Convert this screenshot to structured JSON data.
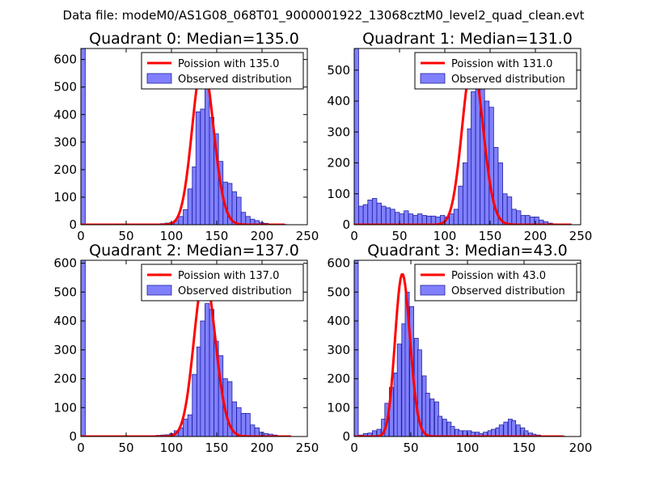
{
  "figure": {
    "suptitle": "Data file: modeM0/AS1G08_068T01_9000001922_13068cztM0_level2_quad_clean.evt"
  },
  "colors": {
    "poisson_line": "#ff0000",
    "hist_fill": "#8080ff",
    "hist_edge": "#2020a0",
    "legend_border": "#000000"
  },
  "chart_data": [
    {
      "type": "bar",
      "title": "Quadrant 0: Median=135.0",
      "xlim": [
        0,
        250
      ],
      "ylim": [
        0,
        640
      ],
      "xticks": [
        0,
        50,
        100,
        150,
        200,
        250
      ],
      "yticks": [
        0,
        100,
        200,
        300,
        400,
        500,
        600
      ],
      "legend": [
        "Poission with 135.0",
        "Observed distribution"
      ],
      "legend_loc": "top-right",
      "bin_width": 4.9,
      "bins": [
        [
          0,
          640
        ],
        [
          78,
          2
        ],
        [
          88,
          4
        ],
        [
          93,
          6
        ],
        [
          98,
          8
        ],
        [
          103,
          15
        ],
        [
          108,
          30
        ],
        [
          113,
          55
        ],
        [
          118,
          130
        ],
        [
          123,
          210
        ],
        [
          127,
          410
        ],
        [
          132,
          420
        ],
        [
          137,
          550
        ],
        [
          142,
          390
        ],
        [
          147,
          330
        ],
        [
          152,
          230
        ],
        [
          157,
          155
        ],
        [
          162,
          150
        ],
        [
          167,
          120
        ],
        [
          172,
          100
        ],
        [
          177,
          45
        ],
        [
          182,
          30
        ],
        [
          187,
          20
        ],
        [
          192,
          15
        ],
        [
          197,
          8
        ],
        [
          202,
          5
        ],
        [
          207,
          3
        ],
        [
          212,
          2
        ],
        [
          217,
          1
        ],
        [
          222,
          1
        ]
      ],
      "poisson": {
        "mu": 135.0,
        "scale": 3.4,
        "x_range": [
          0,
          225
        ]
      }
    },
    {
      "type": "bar",
      "title": "Quadrant 1: Median=131.0",
      "xlim": [
        0,
        250
      ],
      "ylim": [
        0,
        570
      ],
      "xticks": [
        0,
        50,
        100,
        150,
        200,
        250
      ],
      "yticks": [
        0,
        100,
        200,
        300,
        400,
        500
      ],
      "legend": [
        "Poission with 131.0",
        "Observed distribution"
      ],
      "legend_loc": "top-right",
      "bin_width": 4.9,
      "bins": [
        [
          0,
          570
        ],
        [
          5,
          60
        ],
        [
          10,
          65
        ],
        [
          15,
          80
        ],
        [
          20,
          85
        ],
        [
          25,
          70
        ],
        [
          30,
          60
        ],
        [
          35,
          55
        ],
        [
          40,
          50
        ],
        [
          45,
          40
        ],
        [
          50,
          35
        ],
        [
          55,
          45
        ],
        [
          60,
          35
        ],
        [
          65,
          30
        ],
        [
          70,
          35
        ],
        [
          75,
          30
        ],
        [
          80,
          28
        ],
        [
          85,
          28
        ],
        [
          90,
          25
        ],
        [
          95,
          30
        ],
        [
          100,
          25
        ],
        [
          105,
          35
        ],
        [
          110,
          50
        ],
        [
          115,
          125
        ],
        [
          120,
          200
        ],
        [
          125,
          310
        ],
        [
          129,
          430
        ],
        [
          134,
          480
        ],
        [
          139,
          530
        ],
        [
          144,
          400
        ],
        [
          149,
          380
        ],
        [
          154,
          250
        ],
        [
          159,
          200
        ],
        [
          164,
          100
        ],
        [
          169,
          90
        ],
        [
          174,
          50
        ],
        [
          179,
          45
        ],
        [
          184,
          30
        ],
        [
          189,
          30
        ],
        [
          194,
          25
        ],
        [
          199,
          25
        ],
        [
          204,
          15
        ],
        [
          209,
          10
        ],
        [
          214,
          5
        ],
        [
          219,
          3
        ],
        [
          224,
          2
        ],
        [
          229,
          1
        ]
      ],
      "poisson": {
        "mu": 131.0,
        "scale": 3.48,
        "x_range": [
          0,
          240
        ]
      }
    },
    {
      "type": "bar",
      "title": "Quadrant 2: Median=137.0",
      "xlim": [
        0,
        250
      ],
      "ylim": [
        0,
        610
      ],
      "xticks": [
        0,
        50,
        100,
        150,
        200,
        250
      ],
      "yticks": [
        0,
        100,
        200,
        300,
        400,
        500,
        600
      ],
      "legend": [
        "Poission with 137.0",
        "Observed distribution"
      ],
      "legend_loc": "top-right",
      "bin_width": 4.9,
      "bins": [
        [
          0,
          610
        ],
        [
          73,
          2
        ],
        [
          78,
          3
        ],
        [
          83,
          4
        ],
        [
          88,
          5
        ],
        [
          93,
          6
        ],
        [
          98,
          10
        ],
        [
          103,
          20
        ],
        [
          108,
          30
        ],
        [
          113,
          60
        ],
        [
          118,
          75
        ],
        [
          123,
          215
        ],
        [
          128,
          310
        ],
        [
          132,
          400
        ],
        [
          137,
          460
        ],
        [
          142,
          440
        ],
        [
          147,
          330
        ],
        [
          152,
          280
        ],
        [
          157,
          200
        ],
        [
          162,
          190
        ],
        [
          167,
          120
        ],
        [
          172,
          100
        ],
        [
          177,
          80
        ],
        [
          182,
          80
        ],
        [
          187,
          40
        ],
        [
          192,
          30
        ],
        [
          197,
          15
        ],
        [
          202,
          10
        ],
        [
          207,
          8
        ],
        [
          212,
          5
        ],
        [
          217,
          3
        ],
        [
          222,
          3
        ],
        [
          227,
          2
        ]
      ],
      "poisson": {
        "mu": 137.0,
        "scale": 3.37,
        "x_range": [
          0,
          232
        ]
      }
    },
    {
      "type": "bar",
      "title": "Quadrant 3: Median=43.0",
      "xlim": [
        0,
        200
      ],
      "ylim": [
        0,
        610
      ],
      "xticks": [
        0,
        50,
        100,
        150,
        200
      ],
      "yticks": [
        0,
        100,
        200,
        300,
        400,
        500,
        600
      ],
      "legend": [
        "Poission with 43.0",
        "Observed distribution"
      ],
      "legend_loc": "top-right",
      "bin_width": 3.6,
      "bins": [
        [
          0,
          610
        ],
        [
          4,
          5
        ],
        [
          8,
          10
        ],
        [
          12,
          12
        ],
        [
          16,
          20
        ],
        [
          20,
          25
        ],
        [
          24,
          60
        ],
        [
          27,
          115
        ],
        [
          31,
          170
        ],
        [
          35,
          220
        ],
        [
          38,
          320
        ],
        [
          42,
          390
        ],
        [
          45,
          500
        ],
        [
          49,
          450
        ],
        [
          53,
          340
        ],
        [
          56,
          300
        ],
        [
          60,
          210
        ],
        [
          63,
          150
        ],
        [
          67,
          130
        ],
        [
          71,
          120
        ],
        [
          74,
          70
        ],
        [
          78,
          60
        ],
        [
          82,
          50
        ],
        [
          85,
          35
        ],
        [
          89,
          25
        ],
        [
          92,
          20
        ],
        [
          96,
          20
        ],
        [
          100,
          20
        ],
        [
          103,
          15
        ],
        [
          107,
          15
        ],
        [
          110,
          10
        ],
        [
          114,
          15
        ],
        [
          118,
          20
        ],
        [
          121,
          25
        ],
        [
          125,
          30
        ],
        [
          128,
          40
        ],
        [
          132,
          50
        ],
        [
          136,
          60
        ],
        [
          139,
          55
        ],
        [
          143,
          40
        ],
        [
          147,
          30
        ],
        [
          150,
          20
        ],
        [
          154,
          12
        ],
        [
          157,
          8
        ],
        [
          161,
          5
        ],
        [
          165,
          3
        ],
        [
          168,
          3
        ],
        [
          172,
          2
        ],
        [
          176,
          2
        ],
        [
          180,
          2
        ],
        [
          183,
          1
        ]
      ],
      "poisson": {
        "mu": 43.0,
        "scale": 6.5,
        "x_range": [
          0,
          185
        ]
      }
    }
  ]
}
